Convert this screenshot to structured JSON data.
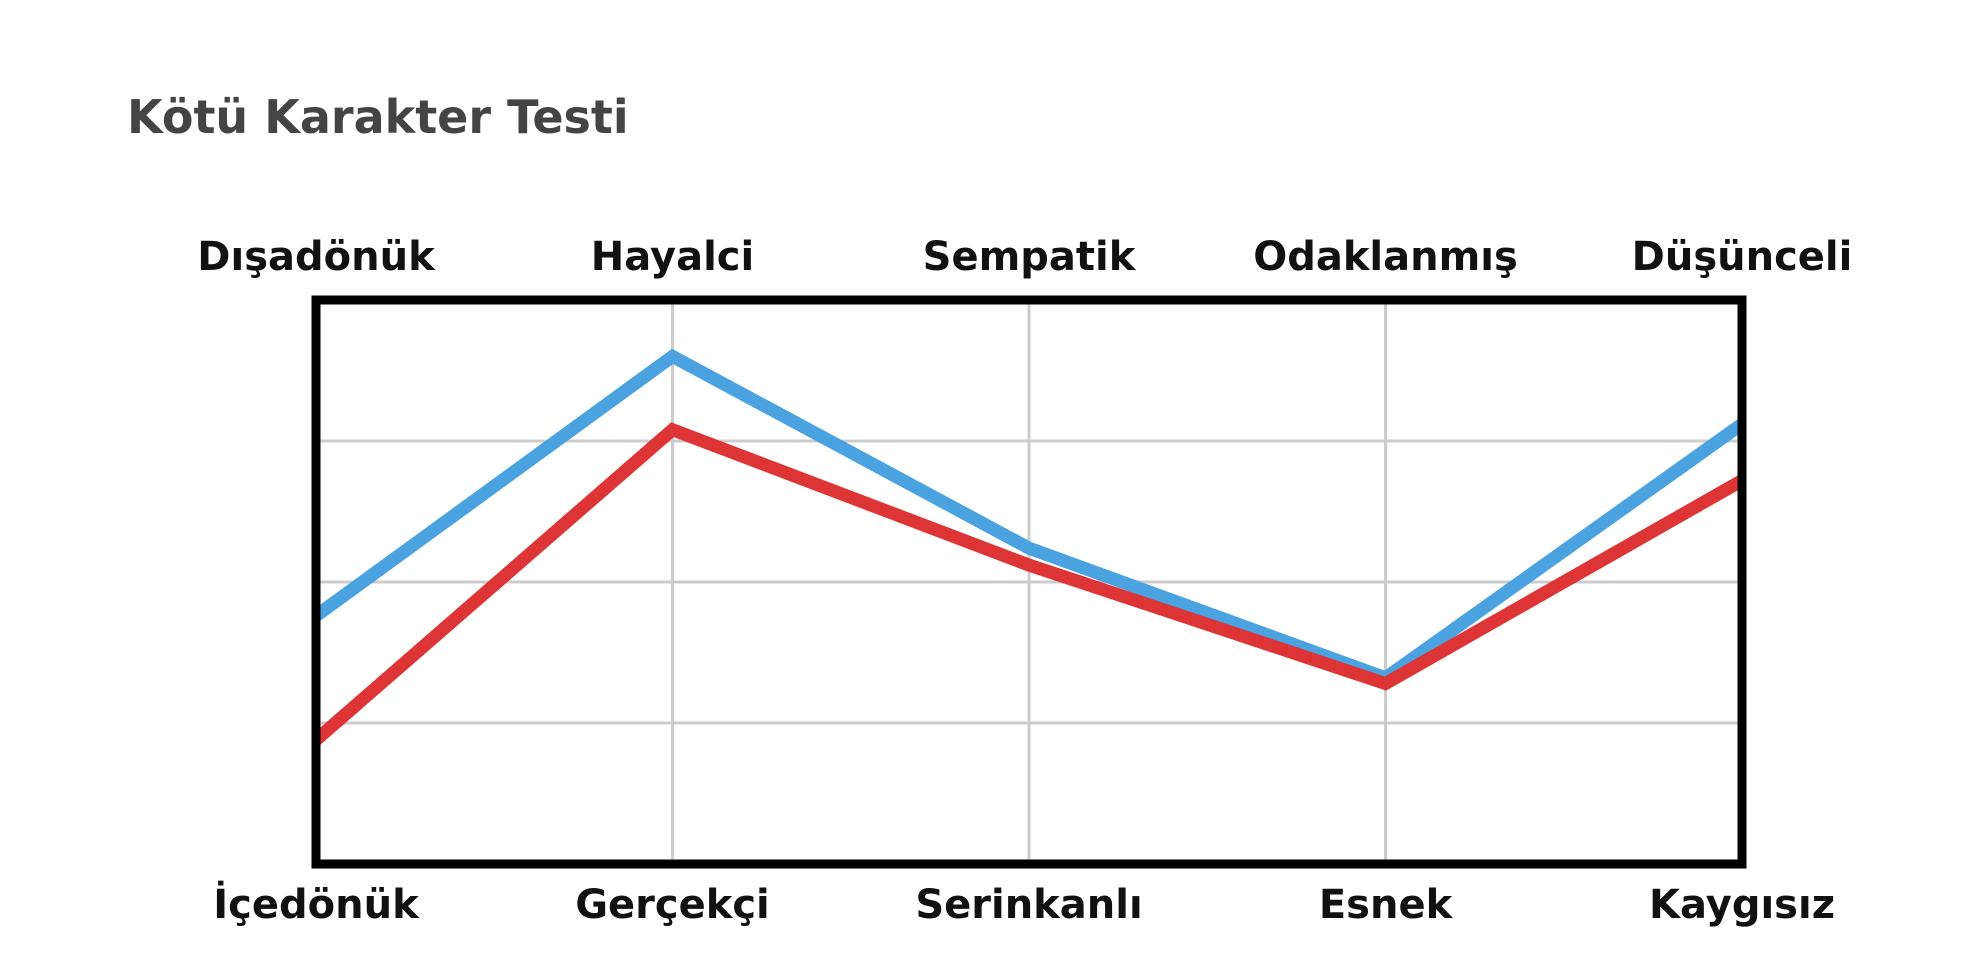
{
  "colors": {
    "title": "#444444",
    "labels": "#111111",
    "frame": "#000000",
    "grid": "#cccccc",
    "series_blue": "#4aa3e0",
    "series_red": "#dd3535"
  },
  "chart_data": {
    "type": "line",
    "title": "Kötü Karakter Testi",
    "top_labels": [
      "Dışadönük",
      "Hayalci",
      "Sempatik",
      "Odaklanmış",
      "Düşünceli"
    ],
    "bottom_labels": [
      "İçedönük",
      "Gerçekçi",
      "Serinkanlı",
      "Esnek",
      "Kaygısız"
    ],
    "ylim": [
      0,
      100
    ],
    "grid": true,
    "grid_y": [
      25,
      50,
      75
    ],
    "series": [
      {
        "color": "#4aa3e0",
        "values": [
          44,
          90,
          56,
          33,
          78
        ]
      },
      {
        "color": "#dd3535",
        "values": [
          22,
          77,
          53,
          32,
          68
        ]
      }
    ]
  }
}
